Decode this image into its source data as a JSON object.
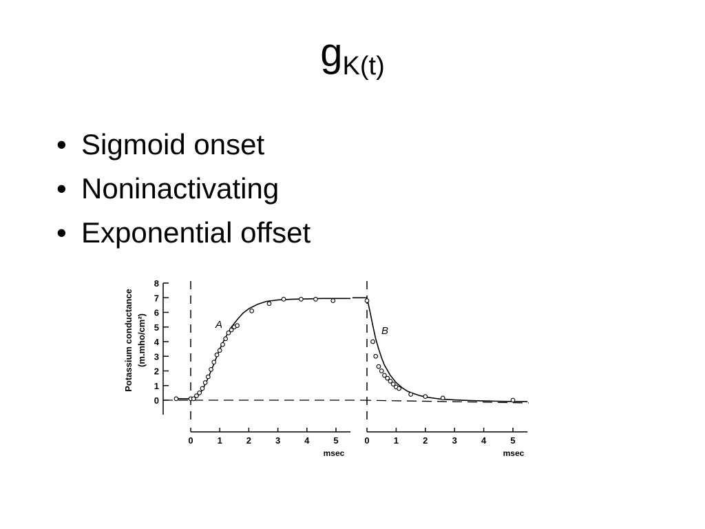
{
  "slide": {
    "title_main": "g",
    "title_sub": "K(t)",
    "bullets": [
      "Sigmoid onset",
      "Noninactivating",
      "Exponential offset"
    ]
  },
  "chart_data": {
    "type": "line",
    "ylabel_line1": "Potassium conductance",
    "ylabel_line2": "(m.mho/cm²)",
    "ylim": [
      0,
      8
    ],
    "yticks": [
      0,
      1,
      2,
      3,
      4,
      5,
      6,
      7,
      8
    ],
    "grid": false,
    "panels": [
      {
        "label": "A",
        "xlabel": "msec",
        "xlim": [
          0,
          5.5
        ],
        "xticks": [
          0,
          1,
          2,
          3,
          4,
          5
        ],
        "curve": {
          "x": [
            -0.5,
            -0.2,
            0,
            0.1,
            0.2,
            0.3,
            0.4,
            0.5,
            0.6,
            0.7,
            0.8,
            0.9,
            1,
            1.2,
            1.4,
            1.6,
            1.8,
            2,
            2.3,
            2.6,
            3,
            3.5,
            4,
            4.5,
            5,
            5.5
          ],
          "y": [
            0.1,
            0.1,
            0.1,
            0.12,
            0.2,
            0.4,
            0.7,
            1.1,
            1.5,
            2.0,
            2.5,
            3.0,
            3.5,
            4.3,
            5.0,
            5.5,
            5.95,
            6.25,
            6.55,
            6.75,
            6.85,
            6.9,
            6.92,
            6.95,
            6.95,
            6.95
          ]
        },
        "points": {
          "x": [
            -0.5,
            0,
            0.1,
            0.2,
            0.3,
            0.4,
            0.5,
            0.6,
            0.7,
            0.8,
            0.9,
            1,
            1.1,
            1.2,
            1.3,
            1.4,
            1.5,
            1.6,
            2.1,
            2.7,
            3.2,
            3.8,
            4.3,
            4.9
          ],
          "y": [
            0.1,
            0.1,
            0.1,
            0.3,
            0.5,
            0.8,
            1.2,
            1.6,
            2.1,
            2.6,
            3.1,
            3.4,
            3.8,
            4.2,
            4.6,
            4.8,
            5.0,
            5.1,
            6.1,
            6.6,
            6.9,
            6.9,
            6.9,
            6.8
          ]
        }
      },
      {
        "label": "B",
        "xlabel": "msec",
        "xlim": [
          0,
          5.5
        ],
        "xticks": [
          0,
          1,
          2,
          3,
          4,
          5
        ],
        "curve": {
          "x": [
            -0.5,
            0,
            0.1,
            0.2,
            0.3,
            0.4,
            0.5,
            0.6,
            0.8,
            1,
            1.2,
            1.4,
            1.6,
            1.8,
            2,
            2.5,
            3,
            3.5,
            4,
            4.5,
            5,
            5.5
          ],
          "y": [
            7.0,
            7.0,
            6.1,
            5.1,
            4.2,
            3.5,
            2.9,
            2.4,
            1.7,
            1.2,
            0.85,
            0.6,
            0.45,
            0.32,
            0.22,
            0.08,
            0.02,
            -0.02,
            -0.05,
            -0.07,
            -0.09,
            -0.1
          ]
        },
        "points": {
          "x": [
            0,
            0.2,
            0.3,
            0.4,
            0.5,
            0.6,
            0.7,
            0.8,
            0.9,
            1,
            1.1,
            1.5,
            2,
            2.6,
            5
          ],
          "y": [
            6.8,
            4.0,
            3.0,
            2.3,
            2.0,
            1.7,
            1.5,
            1.3,
            1.1,
            0.9,
            0.8,
            0.4,
            0.25,
            0.15,
            0.0
          ]
        }
      }
    ]
  }
}
